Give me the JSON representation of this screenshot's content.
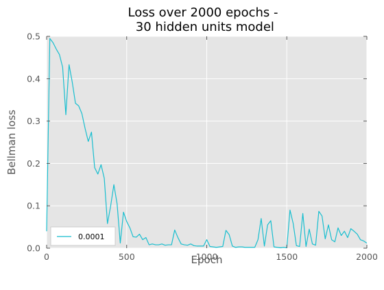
{
  "chart_data": {
    "type": "line",
    "title": "Loss over 2000 epochs -\n 30 hidden units model",
    "xlabel": "Epoch",
    "ylabel": "Bellman loss",
    "xlim": [
      0,
      2000
    ],
    "ylim": [
      0,
      0.5
    ],
    "xticks": [
      0,
      500,
      1000,
      1500,
      2000
    ],
    "yticks": [
      0.0,
      0.1,
      0.2,
      0.3,
      0.4,
      0.5
    ],
    "xtick_labels": [
      "0",
      "500",
      "1000",
      "1500",
      "2000"
    ],
    "ytick_labels": [
      "0.0",
      "0.1",
      "0.2",
      "0.3",
      "0.4",
      "0.5"
    ],
    "grid": true,
    "legend": "lower-left",
    "colors": {
      "plot_background": "#e5e5e5",
      "grid": "#ffffff",
      "series": "#17becf",
      "tick_text": "#555555"
    },
    "series": [
      {
        "name": "0.0001",
        "x": [
          0,
          20,
          40,
          60,
          80,
          100,
          120,
          140,
          160,
          180,
          200,
          220,
          240,
          260,
          280,
          300,
          320,
          340,
          360,
          380,
          400,
          420,
          440,
          460,
          480,
          500,
          520,
          540,
          560,
          580,
          600,
          620,
          640,
          660,
          680,
          700,
          720,
          740,
          760,
          780,
          800,
          820,
          840,
          860,
          880,
          900,
          920,
          940,
          960,
          980,
          1000,
          1020,
          1040,
          1060,
          1080,
          1100,
          1120,
          1140,
          1160,
          1180,
          1200,
          1220,
          1240,
          1260,
          1280,
          1300,
          1320,
          1340,
          1360,
          1380,
          1400,
          1420,
          1440,
          1460,
          1480,
          1500,
          1520,
          1540,
          1560,
          1580,
          1600,
          1620,
          1640,
          1660,
          1680,
          1700,
          1720,
          1740,
          1760,
          1780,
          1800,
          1820,
          1840,
          1860,
          1880,
          1900,
          1920,
          1940,
          1960,
          1980,
          2000
        ],
        "y": [
          0.04,
          0.495,
          0.485,
          0.47,
          0.457,
          0.427,
          0.315,
          0.433,
          0.392,
          0.342,
          0.336,
          0.318,
          0.283,
          0.252,
          0.274,
          0.19,
          0.175,
          0.197,
          0.165,
          0.058,
          0.1,
          0.15,
          0.105,
          0.012,
          0.085,
          0.063,
          0.048,
          0.027,
          0.026,
          0.033,
          0.02,
          0.025,
          0.008,
          0.01,
          0.008,
          0.008,
          0.01,
          0.007,
          0.008,
          0.008,
          0.043,
          0.025,
          0.01,
          0.008,
          0.007,
          0.01,
          0.006,
          0.005,
          0.005,
          0.005,
          0.02,
          0.004,
          0.003,
          0.002,
          0.003,
          0.004,
          0.042,
          0.032,
          0.005,
          0.002,
          0.003,
          0.003,
          0.002,
          0.002,
          0.002,
          0.002,
          0.02,
          0.07,
          0.005,
          0.055,
          0.065,
          0.003,
          0.002,
          0.001,
          0.002,
          0.001,
          0.09,
          0.058,
          0.006,
          0.004,
          0.082,
          0.004,
          0.045,
          0.01,
          0.007,
          0.087,
          0.076,
          0.022,
          0.055,
          0.02,
          0.015,
          0.048,
          0.03,
          0.04,
          0.025,
          0.046,
          0.04,
          0.033,
          0.02,
          0.017,
          0.012
        ]
      }
    ]
  }
}
